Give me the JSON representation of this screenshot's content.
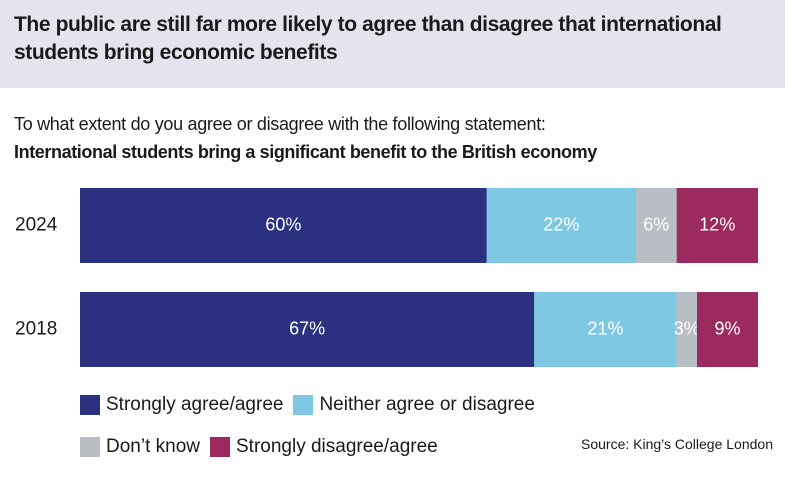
{
  "chart_data": {
    "type": "stacked-bar-horizontal",
    "title": "The public are still far more likely to agree than disagree that international students bring economic benefits",
    "question": "To what extent do you agree or disagree with the following statement:",
    "statement": "International students bring a significant benefit to the British economy",
    "categories": [
      "2024",
      "2018"
    ],
    "series": [
      {
        "name": "Strongly agree/agree",
        "color": "#2b3180",
        "values": [
          60,
          67
        ],
        "value_labels": [
          "60%",
          "67%"
        ]
      },
      {
        "name": "Neither agree or disagree",
        "color": "#7ec8e3",
        "values": [
          22,
          21
        ],
        "value_labels": [
          "22%",
          "21%"
        ]
      },
      {
        "name": "Don’t know",
        "color": "#b9bec4",
        "values": [
          6,
          3
        ],
        "value_labels": [
          "6%",
          "3%"
        ]
      },
      {
        "name": "Strongly disagree/agree",
        "color": "#9b2a5e",
        "values": [
          12,
          9
        ],
        "value_labels": [
          "12%",
          "9%"
        ]
      }
    ],
    "source": "Source: King’s College London"
  }
}
